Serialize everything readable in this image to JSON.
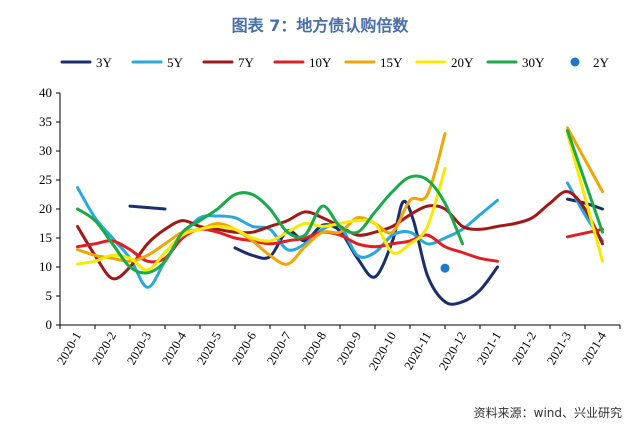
{
  "title": "图表 7：地方债认购倍数",
  "source": "资料来源：wind、兴业研究",
  "chart_data": {
    "type": "line",
    "categories": [
      "2020-1",
      "2020-2",
      "2020-3",
      "2020-4",
      "2020-5",
      "2020-6",
      "2020-7",
      "2020-8",
      "2020-9",
      "2020-10",
      "2020-11",
      "2020-12",
      "2021-1",
      "2021-2",
      "2021-3",
      "2021-4"
    ],
    "ylim": [
      0,
      40
    ],
    "yticks": [
      0,
      5,
      10,
      15,
      20,
      25,
      30,
      35,
      40
    ],
    "grid": false,
    "legend": "top",
    "series": [
      {
        "name": "3Y",
        "color": "#1a2e6e",
        "segments": [
          [
            [
              1.5,
              20.5
            ],
            [
              2.5,
              20.0
            ]
          ],
          [
            [
              4.5,
              13.3
            ],
            [
              5.0,
              12.0
            ],
            [
              5.5,
              11.8
            ],
            [
              6.0,
              16.2
            ],
            [
              6.5,
              14.5
            ],
            [
              7.0,
              17.2
            ],
            [
              7.5,
              16.2
            ],
            [
              8.0,
              11.5
            ],
            [
              8.5,
              8.3
            ],
            [
              9.0,
              14.5
            ],
            [
              9.3,
              21.2
            ],
            [
              9.6,
              18.0
            ],
            [
              10.0,
              8.5
            ],
            [
              10.5,
              4.0
            ],
            [
              11.0,
              4.0
            ],
            [
              11.5,
              6.0
            ],
            [
              12.0,
              10.0
            ]
          ],
          [
            [
              14.0,
              21.7
            ],
            [
              14.5,
              21.0
            ],
            [
              15.0,
              20.0
            ]
          ]
        ]
      },
      {
        "name": "5Y",
        "color": "#29a8e0",
        "segments": [
          [
            [
              0,
              23.7
            ],
            [
              0.5,
              18.5
            ],
            [
              1.0,
              15.0
            ],
            [
              1.5,
              11.5
            ],
            [
              2.0,
              6.5
            ],
            [
              2.5,
              11.0
            ],
            [
              3.0,
              15.5
            ],
            [
              3.5,
              18.5
            ],
            [
              4.0,
              18.8
            ],
            [
              4.5,
              18.5
            ],
            [
              5.0,
              17.0
            ],
            [
              5.5,
              16.5
            ],
            [
              6.0,
              13.0
            ],
            [
              6.5,
              14.0
            ],
            [
              7.0,
              16.5
            ],
            [
              7.5,
              17.0
            ],
            [
              8.0,
              12.0
            ],
            [
              8.5,
              12.5
            ],
            [
              9.0,
              15.5
            ],
            [
              9.5,
              16.0
            ],
            [
              10.0,
              14.0
            ],
            [
              10.5,
              15.0
            ],
            [
              11.0,
              16.5
            ],
            [
              11.5,
              19.0
            ],
            [
              12.0,
              21.5
            ]
          ],
          [
            [
              14.0,
              24.5
            ],
            [
              14.5,
              19.0
            ],
            [
              15.0,
              14.5
            ]
          ]
        ]
      },
      {
        "name": "7Y",
        "color": "#a01818",
        "segments": [
          [
            [
              0,
              17.0
            ],
            [
              0.5,
              12.0
            ],
            [
              1.0,
              8.0
            ],
            [
              1.5,
              10.0
            ],
            [
              2.0,
              14.0
            ],
            [
              2.5,
              16.5
            ],
            [
              3.0,
              18.0
            ],
            [
              3.5,
              17.0
            ],
            [
              4.0,
              16.5
            ],
            [
              4.5,
              16.0
            ],
            [
              5.0,
              16.0
            ],
            [
              5.5,
              17.0
            ],
            [
              6.0,
              18.0
            ],
            [
              6.5,
              19.5
            ],
            [
              7.0,
              18.5
            ],
            [
              7.5,
              17.0
            ],
            [
              8.0,
              15.5
            ],
            [
              8.5,
              16.0
            ],
            [
              9.0,
              17.0
            ],
            [
              9.5,
              19.0
            ],
            [
              10.0,
              20.5
            ],
            [
              10.5,
              20.0
            ],
            [
              11.0,
              17.0
            ],
            [
              11.5,
              16.5
            ],
            [
              12.0,
              17.0
            ],
            [
              12.5,
              17.5
            ],
            [
              13.0,
              18.5
            ],
            [
              13.5,
              21.0
            ],
            [
              14.0,
              23.0
            ],
            [
              14.5,
              20.0
            ],
            [
              15.0,
              14.0
            ]
          ]
        ]
      },
      {
        "name": "10Y",
        "color": "#e01e26",
        "segments": [
          [
            [
              0,
              13.5
            ],
            [
              0.5,
              14.0
            ],
            [
              1.0,
              14.5
            ],
            [
              1.5,
              13.0
            ],
            [
              2.0,
              11.0
            ],
            [
              2.5,
              11.5
            ],
            [
              3.0,
              15.0
            ],
            [
              3.5,
              16.5
            ],
            [
              4.0,
              16.0
            ],
            [
              4.5,
              15.0
            ],
            [
              5.0,
              14.5
            ],
            [
              5.5,
              14.0
            ],
            [
              6.0,
              14.5
            ],
            [
              6.5,
              15.0
            ],
            [
              7.0,
              16.0
            ],
            [
              7.5,
              15.5
            ],
            [
              8.0,
              14.0
            ],
            [
              8.5,
              13.5
            ],
            [
              9.0,
              14.0
            ],
            [
              9.5,
              14.5
            ],
            [
              10.0,
              15.5
            ],
            [
              10.5,
              13.5
            ],
            [
              11.0,
              12.5
            ],
            [
              11.5,
              11.5
            ],
            [
              12.0,
              11.0
            ]
          ],
          [
            [
              14.0,
              15.2
            ],
            [
              15.0,
              16.5
            ]
          ]
        ]
      },
      {
        "name": "15Y",
        "color": "#f0a500",
        "segments": [
          [
            [
              0,
              13.0
            ],
            [
              0.5,
              12.0
            ],
            [
              1.0,
              11.5
            ],
            [
              1.5,
              11.0
            ],
            [
              2.0,
              12.0
            ],
            [
              2.5,
              14.0
            ],
            [
              3.0,
              16.0
            ],
            [
              3.5,
              16.5
            ],
            [
              4.0,
              17.5
            ],
            [
              4.5,
              16.5
            ],
            [
              5.0,
              14.5
            ],
            [
              5.5,
              12.0
            ],
            [
              6.0,
              10.5
            ],
            [
              6.5,
              13.5
            ],
            [
              7.0,
              16.0
            ],
            [
              7.5,
              16.0
            ],
            [
              8.0,
              18.5
            ],
            [
              8.5,
              17.5
            ],
            [
              9.0,
              16.0
            ],
            [
              9.5,
              21.5
            ],
            [
              10.0,
              22.5
            ],
            [
              10.5,
              33.0
            ]
          ],
          [
            [
              14.0,
              34.0
            ],
            [
              15.0,
              23.0
            ]
          ]
        ]
      },
      {
        "name": "20Y",
        "color": "#f5ea00",
        "segments": [
          [
            [
              0,
              10.5
            ],
            [
              0.5,
              11.0
            ],
            [
              1.0,
              12.0
            ],
            [
              1.5,
              11.5
            ],
            [
              2.0,
              9.5
            ],
            [
              2.5,
              12.5
            ],
            [
              3.0,
              15.5
            ],
            [
              3.5,
              16.5
            ],
            [
              4.0,
              17.0
            ],
            [
              4.5,
              16.5
            ],
            [
              5.0,
              15.0
            ],
            [
              5.5,
              14.5
            ],
            [
              6.0,
              16.0
            ],
            [
              6.5,
              17.5
            ],
            [
              7.0,
              17.0
            ],
            [
              7.5,
              17.5
            ],
            [
              8.0,
              18.0
            ],
            [
              8.5,
              17.5
            ],
            [
              9.0,
              12.5
            ],
            [
              9.5,
              14.0
            ],
            [
              10.0,
              17.0
            ],
            [
              10.5,
              27.0
            ]
          ],
          [
            [
              14.0,
              33.0
            ],
            [
              15.0,
              11.0
            ]
          ]
        ]
      },
      {
        "name": "30Y",
        "color": "#1aaa4a",
        "segments": [
          [
            [
              0,
              20.0
            ],
            [
              0.5,
              18.0
            ],
            [
              1.0,
              14.0
            ],
            [
              1.5,
              10.0
            ],
            [
              2.0,
              9.0
            ],
            [
              2.5,
              11.0
            ],
            [
              3.0,
              16.0
            ],
            [
              3.5,
              18.0
            ],
            [
              4.0,
              20.0
            ],
            [
              4.5,
              22.5
            ],
            [
              5.0,
              22.5
            ],
            [
              5.5,
              20.0
            ],
            [
              6.0,
              16.0
            ],
            [
              6.5,
              15.5
            ],
            [
              7.0,
              20.5
            ],
            [
              7.5,
              17.0
            ],
            [
              8.0,
              16.0
            ],
            [
              8.5,
              19.5
            ],
            [
              9.0,
              23.0
            ],
            [
              9.5,
              25.5
            ],
            [
              10.0,
              25.0
            ],
            [
              10.5,
              21.0
            ],
            [
              11.0,
              14.0
            ]
          ],
          [
            [
              14.0,
              33.5
            ],
            [
              15.0,
              16.0
            ]
          ]
        ]
      }
    ],
    "points": [
      {
        "name": "2Y",
        "color": "#1e78c8",
        "x": 10.5,
        "y": 9.8
      }
    ]
  }
}
